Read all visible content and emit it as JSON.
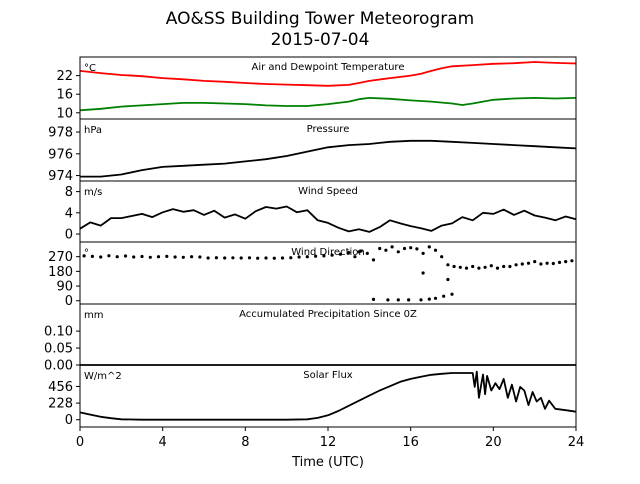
{
  "figure": {
    "title": "AO&SS Building Tower Meteorogram",
    "subtitle": "2015-07-04",
    "xlabel": "Time (UTC)"
  },
  "chart_data": [
    {
      "type": "line",
      "title": "Air and Dewpoint Temperature",
      "unit": "°C",
      "xlim": [
        0,
        24
      ],
      "ylim": [
        8,
        28
      ],
      "yticks": [
        10,
        16,
        22
      ],
      "series": [
        {
          "color": "#ff0000",
          "x": [
            0,
            1,
            2,
            3,
            4,
            5,
            6,
            7,
            8,
            9,
            10,
            11,
            12,
            13,
            13.5,
            14,
            15,
            16,
            16.5,
            17,
            17.5,
            18,
            19,
            20,
            21,
            22,
            23,
            24
          ],
          "y": [
            23.5,
            22.8,
            22.2,
            21.8,
            21.2,
            20.8,
            20.3,
            20.0,
            19.6,
            19.3,
            19.1,
            18.9,
            18.7,
            19.0,
            19.6,
            20.3,
            21.2,
            22.0,
            22.6,
            23.5,
            24.4,
            25.0,
            25.4,
            25.8,
            26.0,
            26.4,
            26.1,
            25.9
          ]
        },
        {
          "color": "#008000",
          "x": [
            0,
            1,
            2,
            3,
            4,
            5,
            6,
            7,
            8,
            9,
            10,
            11,
            12,
            13,
            13.5,
            14,
            15,
            16,
            17,
            18,
            18.5,
            19,
            20,
            21,
            22,
            23,
            24
          ],
          "y": [
            10.8,
            11.3,
            12.0,
            12.4,
            12.8,
            13.2,
            13.2,
            13.0,
            12.8,
            12.4,
            12.2,
            12.2,
            12.8,
            13.6,
            14.4,
            14.8,
            14.5,
            14.0,
            13.6,
            13.0,
            12.5,
            13.0,
            14.2,
            14.6,
            14.8,
            14.6,
            14.8
          ]
        }
      ]
    },
    {
      "type": "line",
      "title": "Pressure",
      "unit": "hPa",
      "xlim": [
        0,
        24
      ],
      "ylim": [
        973.5,
        979.2
      ],
      "yticks": [
        974,
        976,
        978
      ],
      "series": [
        {
          "color": "#000000",
          "x": [
            0,
            1,
            2,
            3,
            4,
            5,
            6,
            7,
            8,
            9,
            10,
            11,
            12,
            13,
            14,
            15,
            16,
            17,
            18,
            19,
            20,
            21,
            22,
            23,
            24
          ],
          "y": [
            973.9,
            973.9,
            974.1,
            974.5,
            974.8,
            974.9,
            975.0,
            975.1,
            975.3,
            975.5,
            975.8,
            976.2,
            976.6,
            976.8,
            976.9,
            977.1,
            977.2,
            977.2,
            977.1,
            977.0,
            976.9,
            976.8,
            976.7,
            976.6,
            976.5
          ]
        }
      ]
    },
    {
      "type": "line",
      "title": "Wind Speed",
      "unit": "m/s",
      "xlim": [
        0,
        24
      ],
      "ylim": [
        -1.5,
        10
      ],
      "yticks": [
        0,
        4,
        8
      ],
      "series": [
        {
          "color": "#000000",
          "x": [
            0,
            0.5,
            1,
            1.5,
            2,
            2.5,
            3,
            3.5,
            4,
            4.5,
            5,
            5.5,
            6,
            6.5,
            7,
            7.5,
            8,
            8.5,
            9,
            9.5,
            10,
            10.5,
            11,
            11.5,
            12,
            12.5,
            13,
            13.5,
            14,
            14.5,
            15,
            15.5,
            16,
            16.5,
            17,
            17.5,
            18,
            18.5,
            19,
            19.5,
            20,
            20.5,
            21,
            21.5,
            22,
            22.5,
            23,
            23.5,
            24
          ],
          "y": [
            1.0,
            2.2,
            1.6,
            3.0,
            3.0,
            3.4,
            3.8,
            3.2,
            4.1,
            4.7,
            4.2,
            4.5,
            3.6,
            4.4,
            3.1,
            3.7,
            2.9,
            4.3,
            5.1,
            4.8,
            5.2,
            4.1,
            4.5,
            2.6,
            2.1,
            1.2,
            0.5,
            0.9,
            0.4,
            1.3,
            2.6,
            2.0,
            1.5,
            1.1,
            0.6,
            1.6,
            2.0,
            3.2,
            2.6,
            4.0,
            3.8,
            4.6,
            3.6,
            4.4,
            3.5,
            3.1,
            2.6,
            3.3,
            2.8
          ]
        }
      ]
    },
    {
      "type": "scatter",
      "title": "Wind Direction",
      "unit": "°",
      "xlim": [
        0,
        24
      ],
      "ylim": [
        -20,
        360
      ],
      "yticks": [
        0,
        90,
        180,
        270
      ],
      "series": [
        {
          "color": "#000000",
          "x": [
            0.2,
            0.6,
            1.0,
            1.4,
            1.8,
            2.2,
            2.6,
            3.0,
            3.4,
            3.8,
            4.2,
            4.6,
            5.0,
            5.4,
            5.8,
            6.2,
            6.6,
            7.0,
            7.4,
            7.8,
            8.2,
            8.6,
            9.0,
            9.4,
            9.8,
            10.2,
            10.6,
            11.0,
            11.4,
            11.8,
            12.2,
            12.6,
            13.0,
            13.3,
            13.6,
            13.9,
            14.2,
            14.5,
            14.8,
            15.1,
            15.4,
            15.7,
            16.0,
            16.3,
            16.6,
            16.9,
            17.2,
            17.5,
            17.8,
            18.1,
            18.4,
            18.7,
            19.0,
            19.3,
            19.6,
            19.9,
            20.2,
            20.5,
            20.8,
            21.1,
            21.4,
            21.7,
            22.0,
            22.3,
            22.6,
            22.9,
            23.2,
            23.5,
            23.8,
            13.5,
            14.2,
            14.9,
            15.4,
            15.9,
            16.5,
            16.9,
            17.2,
            17.6,
            18.0,
            17.8,
            16.6
          ],
          "y": [
            275,
            272,
            268,
            276,
            270,
            274,
            268,
            271,
            266,
            270,
            272,
            268,
            266,
            270,
            268,
            262,
            264,
            262,
            263,
            262,
            263,
            261,
            262,
            261,
            262,
            264,
            268,
            270,
            273,
            275,
            280,
            285,
            295,
            270,
            305,
            290,
            250,
            320,
            310,
            330,
            300,
            320,
            325,
            318,
            290,
            330,
            310,
            270,
            220,
            210,
            205,
            200,
            210,
            200,
            205,
            215,
            200,
            210,
            210,
            220,
            225,
            230,
            240,
            225,
            230,
            228,
            235,
            240,
            245,
            300,
            8,
            5,
            5,
            5,
            5,
            10,
            15,
            28,
            40,
            130,
            170
          ]
        }
      ]
    },
    {
      "type": "line",
      "title": "Accumulated Precipitation Since 0Z",
      "unit": "mm",
      "xlim": [
        0,
        24
      ],
      "ylim": [
        0,
        0.18
      ],
      "yticks": [
        0.0,
        0.05,
        0.1
      ],
      "ytick_labels": [
        "0.00",
        "0.05",
        "0.10"
      ],
      "series": [
        {
          "color": "#000000",
          "x": [
            0,
            24
          ],
          "y": [
            0,
            0
          ]
        }
      ]
    },
    {
      "type": "line",
      "title": "Solar Flux",
      "unit": "W/m^2",
      "xlim": [
        0,
        24
      ],
      "ylim": [
        -100,
        750
      ],
      "yticks": [
        0,
        228,
        456
      ],
      "series": [
        {
          "color": "#000000",
          "x": [
            0,
            0.5,
            1,
            1.5,
            2,
            3,
            4,
            6,
            8,
            10,
            11,
            11.5,
            12,
            12.5,
            13,
            13.5,
            14,
            14.5,
            15,
            15.5,
            16,
            16.5,
            17,
            17.5,
            18,
            18.5,
            19,
            19.1,
            19.2,
            19.3,
            19.5,
            19.6,
            19.7,
            19.9,
            20.1,
            20.3,
            20.5,
            20.7,
            20.9,
            21.1,
            21.3,
            21.5,
            21.7,
            21.9,
            22.1,
            22.3,
            22.5,
            22.7,
            23,
            23.5,
            24
          ],
          "y": [
            100,
            70,
            40,
            20,
            5,
            0,
            0,
            0,
            0,
            0,
            5,
            25,
            60,
            120,
            190,
            260,
            330,
            400,
            460,
            520,
            560,
            590,
            615,
            630,
            640,
            640,
            640,
            450,
            660,
            300,
            620,
            350,
            600,
            400,
            500,
            420,
            560,
            300,
            480,
            250,
            450,
            400,
            200,
            380,
            250,
            300,
            150,
            260,
            150,
            130,
            110
          ]
        }
      ]
    }
  ]
}
